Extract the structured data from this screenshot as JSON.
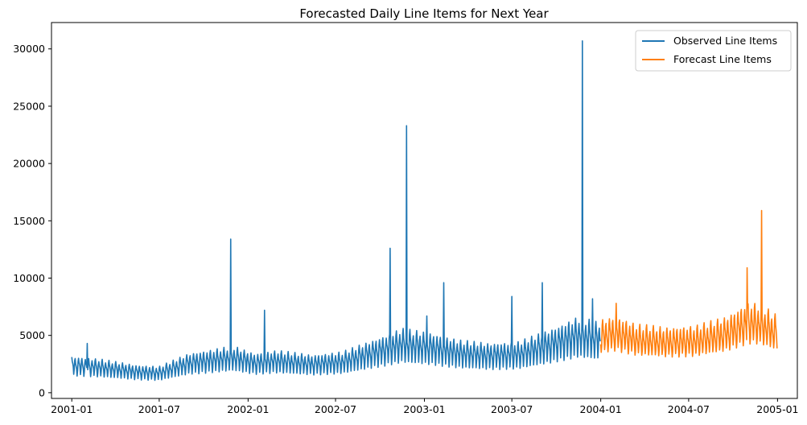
{
  "chart_data": {
    "type": "line",
    "title": "Forecasted Daily Line Items for Next Year",
    "xlabel": "",
    "ylabel": "",
    "x_ticks": [
      "2001-01",
      "2001-07",
      "2002-01",
      "2002-07",
      "2003-01",
      "2003-07",
      "2004-01",
      "2004-07",
      "2005-01"
    ],
    "y_ticks": [
      "0",
      "5000",
      "10000",
      "15000",
      "20000",
      "25000",
      "30000"
    ],
    "ylim": [
      -500,
      32300
    ],
    "xlim": [
      "2000-11-20",
      "2005-02-11"
    ],
    "grid": false,
    "legend_position": "top-right",
    "series": [
      {
        "name": "Observed Line Items",
        "color": "#1f77b4",
        "start_date": "2001-01-01",
        "end_date": "2003-12-31",
        "weekly_pattern": [
          1.12,
          1.22,
          1.05,
          0.98,
          0.88,
          0.62,
          0.8
        ],
        "baseline_knots": [
          [
            "2001-01-01",
            2500
          ],
          [
            "2001-03-01",
            2300
          ],
          [
            "2001-05-15",
            1900
          ],
          [
            "2001-07-01",
            1800
          ],
          [
            "2001-09-01",
            2700
          ],
          [
            "2001-12-01",
            3200
          ],
          [
            "2002-01-15",
            2700
          ],
          [
            "2002-03-01",
            2900
          ],
          [
            "2002-05-15",
            2600
          ],
          [
            "2002-07-15",
            2800
          ],
          [
            "2002-09-15",
            3600
          ],
          [
            "2002-11-15",
            4400
          ],
          [
            "2003-01-15",
            4100
          ],
          [
            "2003-03-15",
            3600
          ],
          [
            "2003-05-15",
            3400
          ],
          [
            "2003-07-15",
            3500
          ],
          [
            "2003-09-15",
            4300
          ],
          [
            "2003-11-15",
            5200
          ],
          [
            "2003-12-31",
            4800
          ]
        ],
        "spikes": [
          [
            "2001-02-02",
            4300
          ],
          [
            "2001-11-26",
            13400
          ],
          [
            "2002-02-04",
            7200
          ],
          [
            "2002-10-22",
            12600
          ],
          [
            "2002-11-25",
            23300
          ],
          [
            "2003-01-06",
            6700
          ],
          [
            "2003-02-10",
            9600
          ],
          [
            "2003-07-01",
            8400
          ],
          [
            "2003-09-02",
            9600
          ],
          [
            "2003-11-24",
            30700
          ],
          [
            "2003-12-15",
            8200
          ]
        ]
      },
      {
        "name": "Forecast Line Items",
        "color": "#ff7f0e",
        "start_date": "2004-01-01",
        "end_date": "2004-12-31",
        "weekly_pattern": [
          1.15,
          1.22,
          1.05,
          0.98,
          0.88,
          0.72,
          0.82
        ],
        "baseline_knots": [
          [
            "2004-01-01",
            5000
          ],
          [
            "2004-02-01",
            5300
          ],
          [
            "2004-03-15",
            4700
          ],
          [
            "2004-05-15",
            4500
          ],
          [
            "2004-07-15",
            4600
          ],
          [
            "2004-09-15",
            5200
          ],
          [
            "2004-11-01",
            6200
          ],
          [
            "2004-11-25",
            6100
          ],
          [
            "2004-12-31",
            5300
          ]
        ],
        "spikes": [
          [
            "2004-02-02",
            7800
          ],
          [
            "2004-10-30",
            10900
          ],
          [
            "2004-11-29",
            15900
          ]
        ]
      }
    ]
  }
}
